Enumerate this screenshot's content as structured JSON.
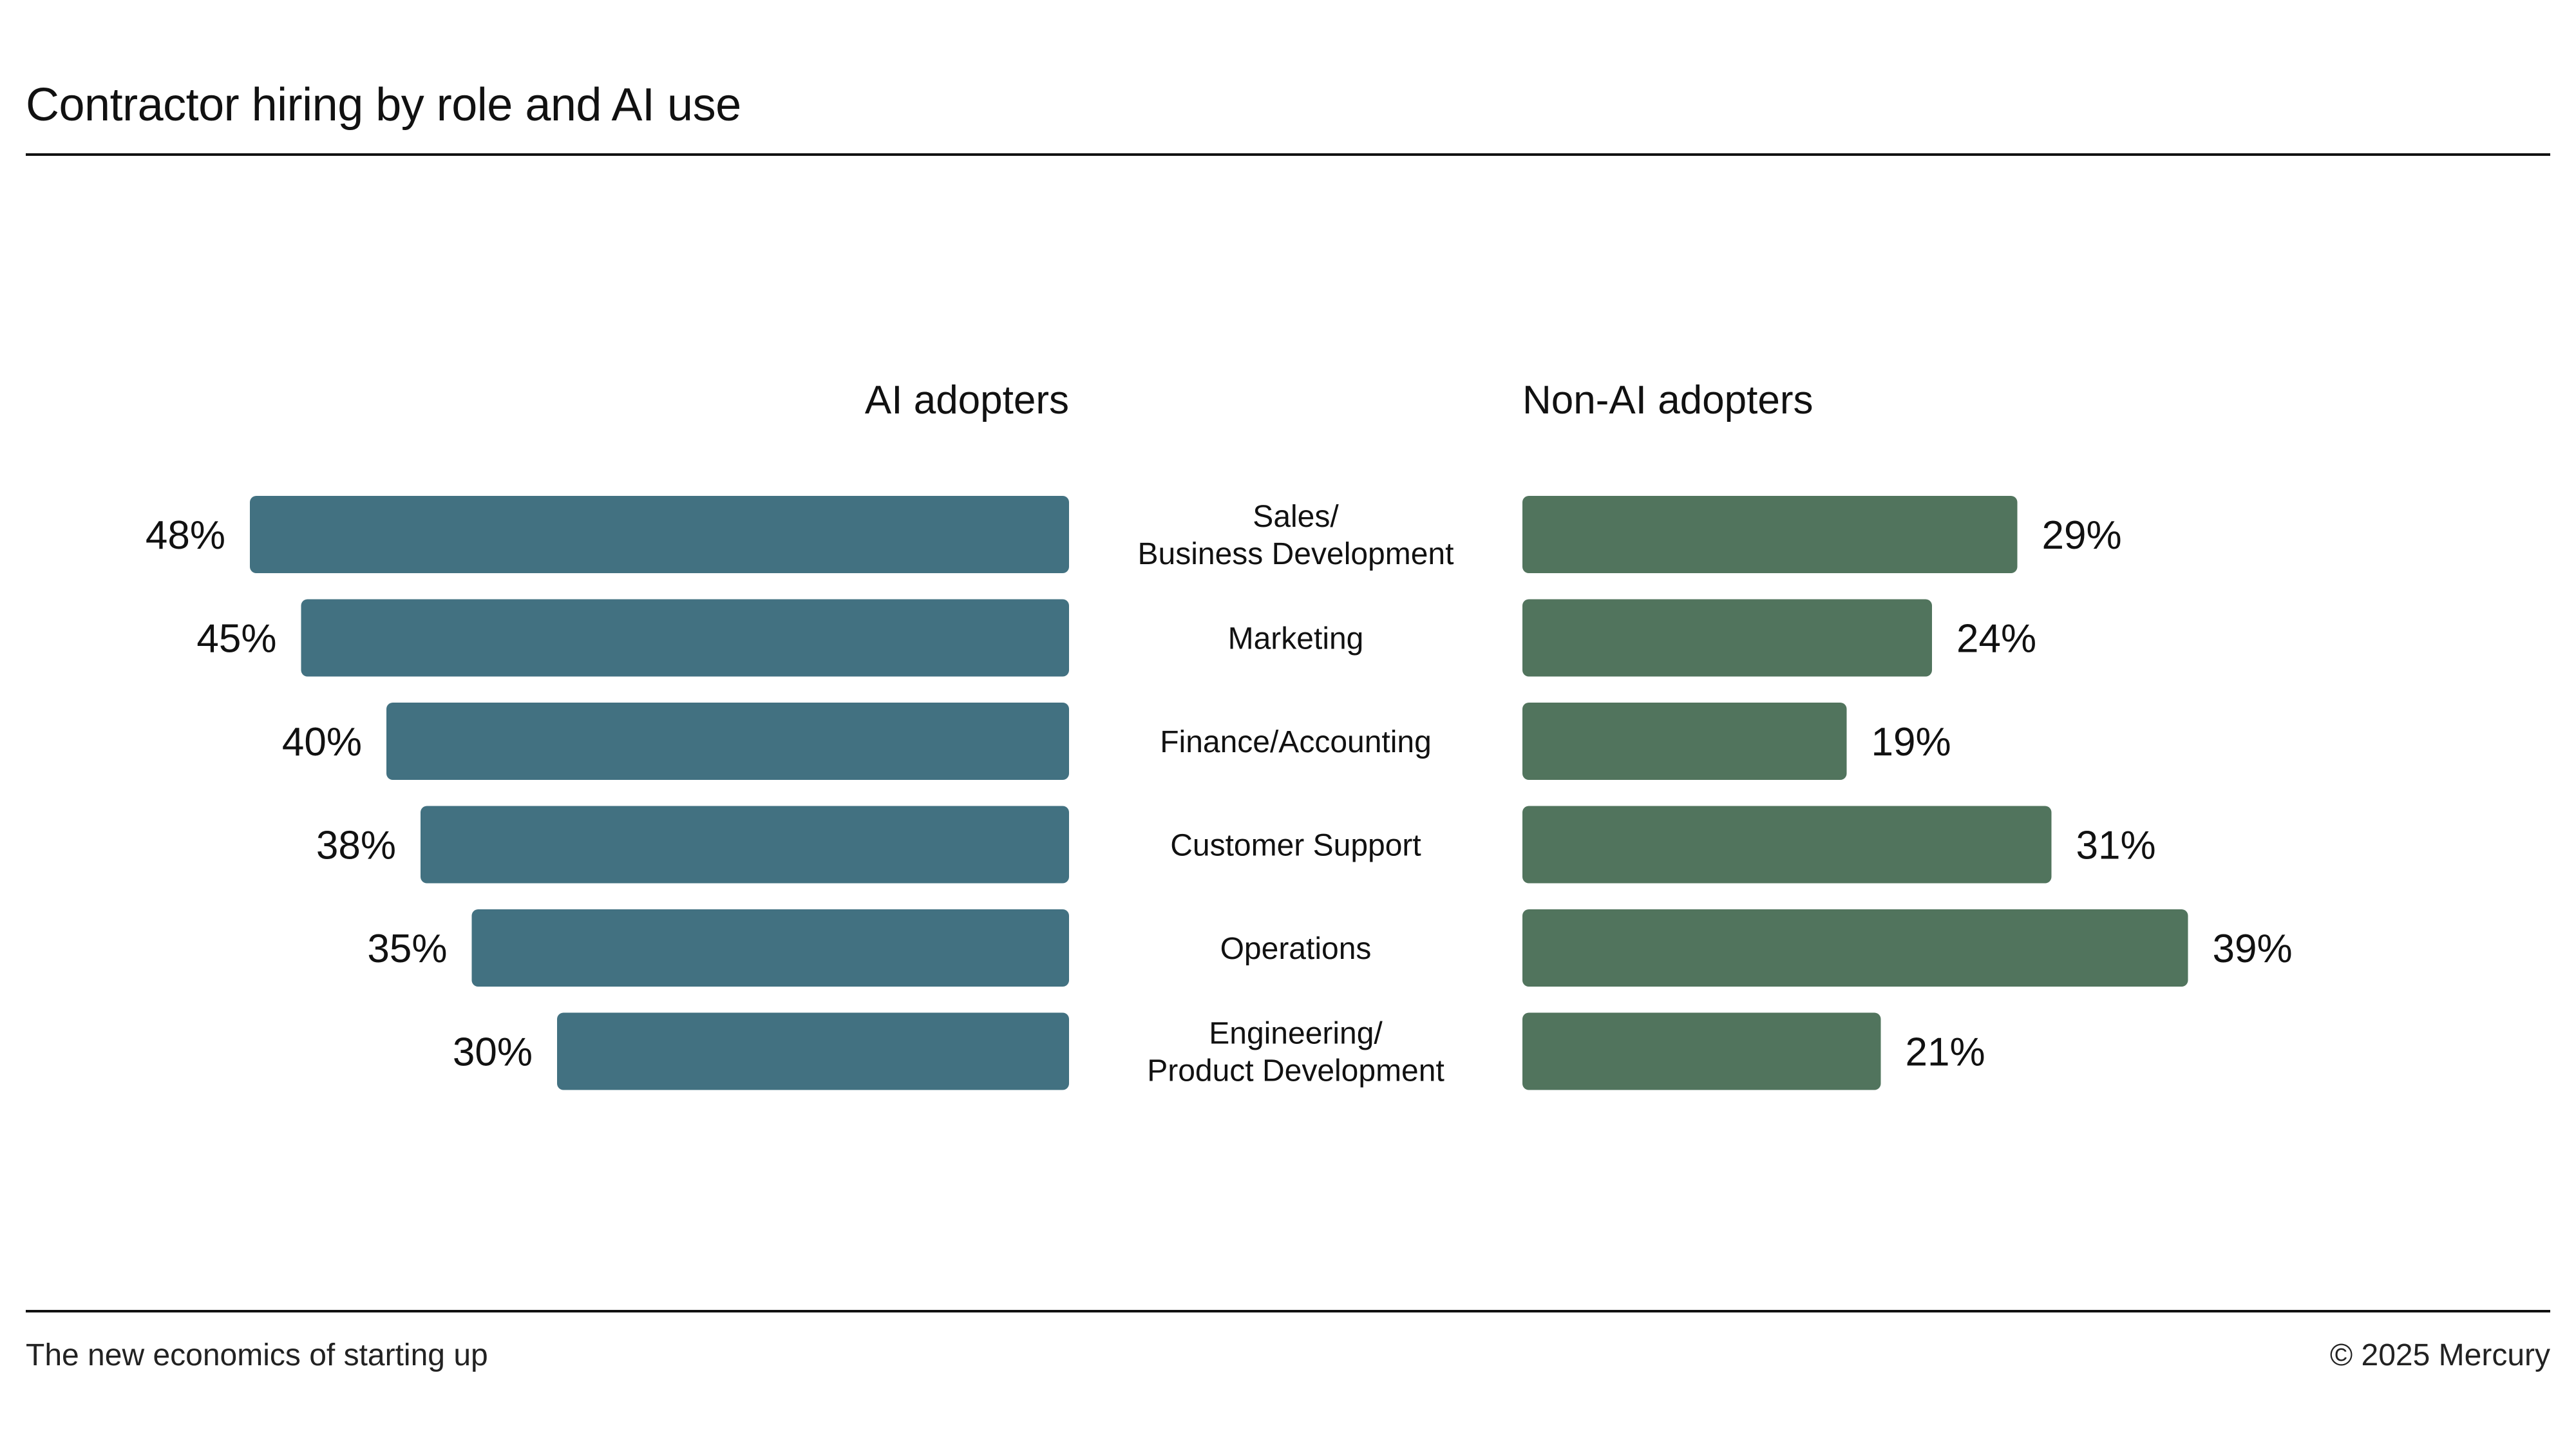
{
  "title": "Contractor hiring by role and AI use",
  "footer": {
    "left": "The new economics of starting up",
    "right": "© 2025 Mercury"
  },
  "colors": {
    "ai": "#427181",
    "non_ai": "#51745d",
    "text": "#111111"
  },
  "chart_data": {
    "type": "bar",
    "orientation": "horizontal",
    "layout": "back-to-back",
    "title": "Contractor hiring by role and AI use",
    "categories": [
      [
        "Sales/",
        "Business Development"
      ],
      [
        "Marketing"
      ],
      [
        "Finance/Accounting"
      ],
      [
        "Customer Support"
      ],
      [
        "Operations"
      ],
      [
        "Engineering/",
        "Product Development"
      ]
    ],
    "series": [
      {
        "name": "AI adopters",
        "values": [
          48,
          45,
          40,
          38,
          35,
          30
        ],
        "labels": [
          "48%",
          "45%",
          "40%",
          "38%",
          "35%",
          "30%"
        ]
      },
      {
        "name": "Non-AI adopters",
        "values": [
          29,
          24,
          19,
          31,
          39,
          21
        ],
        "labels": [
          "29%",
          "24%",
          "19%",
          "31%",
          "39%",
          "21%"
        ]
      }
    ],
    "unit": "%",
    "xlabel": "",
    "ylabel": "",
    "grid": false,
    "legend": "none"
  }
}
